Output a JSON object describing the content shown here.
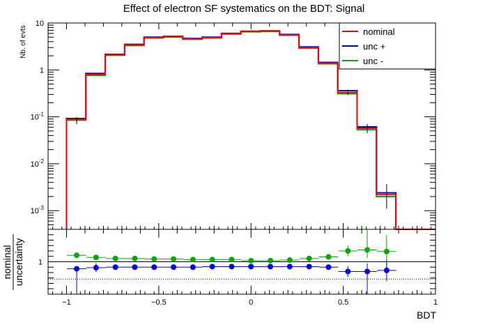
{
  "chart_data": [
    {
      "type": "step",
      "title": "Effect of electron SF systematics on the BDT: Signal",
      "ylabel": "Nb. of evts",
      "xlabel": "",
      "yscale": "log",
      "xlim": [
        -1.1,
        1.0
      ],
      "ylim": [
        0.0004,
        10
      ],
      "bin_edges": [
        -1.0,
        -0.895,
        -0.79,
        -0.685,
        -0.58,
        -0.475,
        -0.37,
        -0.265,
        -0.16,
        -0.055,
        0.05,
        0.155,
        0.26,
        0.365,
        0.47,
        0.575,
        0.68,
        0.785,
        0.89,
        1.0
      ],
      "x_ticks": [
        -1,
        -0.5,
        0,
        0.5,
        1
      ],
      "y_ticks": [
        {
          "value": 0.001,
          "base": "10",
          "exp": "-3"
        },
        {
          "value": 0.01,
          "base": "10",
          "exp": "-2"
        },
        {
          "value": 0.1,
          "base": "10",
          "exp": "-1"
        },
        {
          "value": 1,
          "base": "1",
          "exp": ""
        },
        {
          "value": 10,
          "base": "10",
          "exp": ""
        }
      ],
      "legend_position": "top-right",
      "series": [
        {
          "name": "nominal",
          "color": "#ff0000",
          "values": [
            0.088,
            0.8,
            2.1,
            3.4,
            4.9,
            5.1,
            4.6,
            4.9,
            5.9,
            6.6,
            6.7,
            5.6,
            3.0,
            1.4,
            0.33,
            0.057,
            0.0022,
            0.0,
            0.0
          ]
        },
        {
          "name": "unc +",
          "color": "#0000cc",
          "values": [
            0.092,
            0.84,
            2.15,
            3.5,
            5.0,
            5.2,
            4.7,
            5.0,
            6.0,
            6.7,
            6.8,
            5.7,
            3.1,
            1.45,
            0.36,
            0.061,
            0.0024,
            0.0,
            0.0
          ]
        },
        {
          "name": "unc -",
          "color": "#00aa00",
          "values": [
            0.085,
            0.77,
            2.05,
            3.3,
            4.8,
            5.0,
            4.5,
            4.8,
            5.8,
            6.5,
            6.6,
            5.5,
            2.9,
            1.35,
            0.31,
            0.053,
            0.002,
            0.0,
            0.0
          ]
        }
      ],
      "marker_errors": [
        {
          "x": -0.945,
          "value": 0.088,
          "low": 0.07,
          "high": 0.1
        },
        {
          "x": 0.525,
          "value": 0.33,
          "low": 0.29,
          "high": 0.38
        },
        {
          "x": 0.63,
          "value": 0.057,
          "low": 0.045,
          "high": 0.07
        },
        {
          "x": 0.735,
          "value": 0.0022,
          "low": 0.0011,
          "high": 0.0037
        }
      ]
    },
    {
      "type": "scatter",
      "ylabel_num": "nominal",
      "ylabel_den": "uncertainty",
      "xlabel": "BDT",
      "xlim": [
        -1.1,
        1.0
      ],
      "ylim": [
        0.4,
        1.6
      ],
      "y_ticks": [
        1
      ],
      "reference_lines": [
        {
          "y": 1.0,
          "style": "solid"
        },
        {
          "y": 0.68,
          "style": "dotted"
        }
      ],
      "x": [
        -0.945,
        -0.84,
        -0.735,
        -0.63,
        -0.525,
        -0.42,
        -0.315,
        -0.21,
        -0.105,
        0.0,
        0.105,
        0.21,
        0.315,
        0.42,
        0.525,
        0.63,
        0.735
      ],
      "series": [
        {
          "name": "unc -",
          "color": "#00aa00",
          "values": [
            1.12,
            1.08,
            1.06,
            1.06,
            1.05,
            1.05,
            1.04,
            1.04,
            1.04,
            1.02,
            1.02,
            1.03,
            1.06,
            1.09,
            1.2,
            1.22,
            1.19
          ],
          "err_low": [
            0.02,
            0.03,
            0.02,
            0.02,
            0.02,
            0.02,
            0.02,
            0.02,
            0.02,
            0.02,
            0.02,
            0.02,
            0.02,
            0.02,
            0.1,
            0.15,
            0.3
          ],
          "err_high": [
            0.02,
            0.03,
            0.02,
            0.02,
            0.02,
            0.02,
            0.02,
            0.02,
            0.02,
            0.02,
            0.02,
            0.02,
            0.02,
            0.02,
            0.1,
            0.55,
            0.3
          ]
        },
        {
          "name": "unc +",
          "color": "#0000ff",
          "values": [
            0.87,
            0.89,
            0.9,
            0.9,
            0.9,
            0.9,
            0.9,
            0.91,
            0.91,
            0.91,
            0.91,
            0.91,
            0.91,
            0.9,
            0.82,
            0.82,
            0.84
          ],
          "err_low": [
            0.55,
            0.08,
            0.02,
            0.02,
            0.02,
            0.02,
            0.02,
            0.02,
            0.02,
            0.02,
            0.02,
            0.02,
            0.02,
            0.02,
            0.1,
            0.45,
            0.2
          ],
          "err_high": [
            0.02,
            0.08,
            0.02,
            0.02,
            0.02,
            0.02,
            0.02,
            0.02,
            0.02,
            0.02,
            0.02,
            0.02,
            0.02,
            0.02,
            0.1,
            0.15,
            0.2
          ]
        }
      ],
      "x_ticks": [
        {
          "value": -1,
          "label": "−1"
        },
        {
          "value": -0.5,
          "label": "−0.5"
        },
        {
          "value": 0,
          "label": "0"
        },
        {
          "value": 0.5,
          "label": "0.5"
        },
        {
          "value": 1,
          "label": "1"
        }
      ]
    }
  ]
}
